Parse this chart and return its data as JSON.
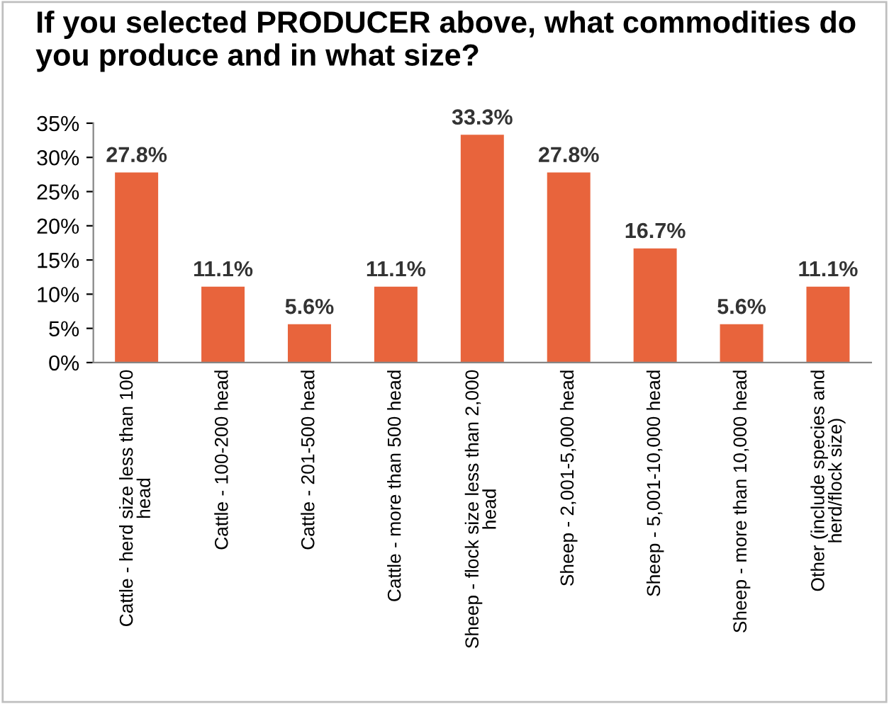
{
  "chart_data": {
    "type": "bar",
    "title": "If you selected PRODUCER above, what commodities do you produce and in what size?",
    "categories": [
      "Cattle - herd size less than 100 head",
      "Cattle - 100-200 head",
      "Cattle - 201-500 head",
      "Cattle - more than 500 head",
      "Sheep - flock size less than 2,000 head",
      "Sheep - 2,001-5,000 head",
      "Sheep - 5,001-10,000 head",
      "Sheep - more than 10,000 head",
      "Other (include species and herd/flock size)"
    ],
    "values": [
      27.8,
      11.1,
      5.6,
      11.1,
      33.3,
      27.8,
      16.7,
      5.6,
      11.1
    ],
    "value_labels": [
      "27.8%",
      "11.1%",
      "5.6%",
      "11.1%",
      "33.3%",
      "27.8%",
      "16.7%",
      "5.6%",
      "11.1%"
    ],
    "color": "#e8643c",
    "ylim": [
      0,
      35
    ],
    "yticks": [
      {
        "value": 0,
        "label": "0%"
      },
      {
        "value": 5,
        "label": "5%"
      },
      {
        "value": 10,
        "label": "10%"
      },
      {
        "value": 15,
        "label": "15%"
      },
      {
        "value": 20,
        "label": "20%"
      },
      {
        "value": 25,
        "label": "25%"
      },
      {
        "value": 30,
        "label": "30%"
      },
      {
        "value": 35,
        "label": "35%"
      }
    ],
    "grid": false,
    "legend": false
  }
}
